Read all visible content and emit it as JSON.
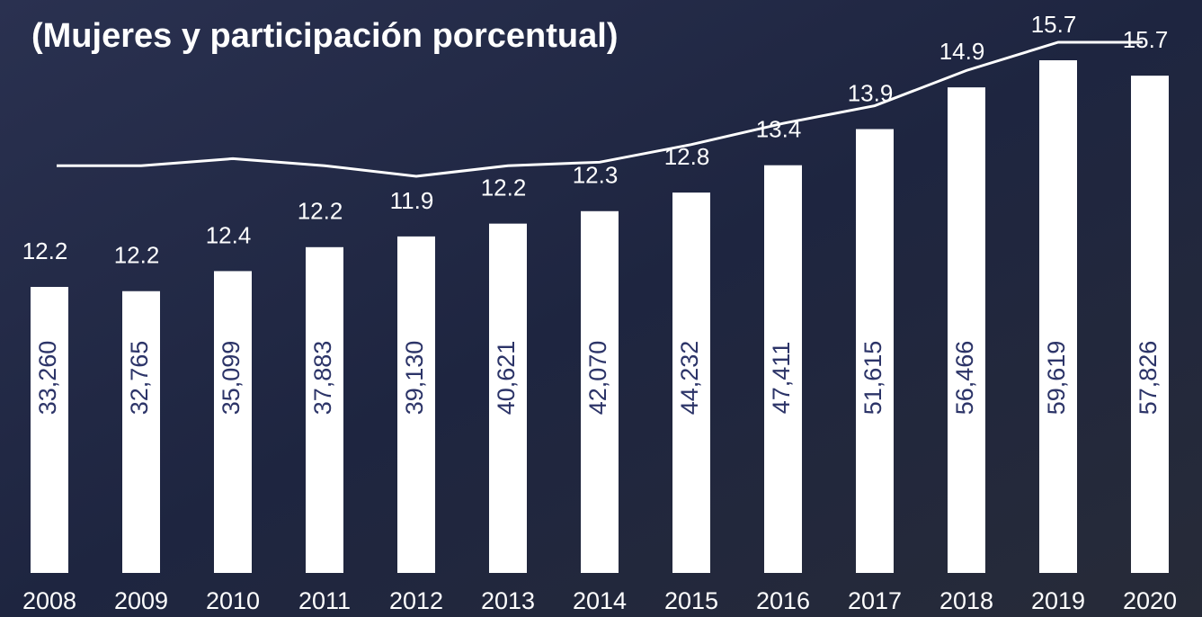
{
  "chart_data": {
    "type": "bar",
    "title": "(Mujeres y participación porcentual)",
    "categories": [
      "2008",
      "2009",
      "2010",
      "2011",
      "2012",
      "2013",
      "2014",
      "2015",
      "2016",
      "2017",
      "2018",
      "2019",
      "2020"
    ],
    "series": [
      {
        "type": "bar",
        "color": "#ffffff",
        "values": [
          33260,
          32765,
          35099,
          37883,
          39130,
          40621,
          42070,
          44232,
          47411,
          51615,
          56466,
          59619,
          57826
        ],
        "value_labels": [
          "33,260",
          "32,765",
          "35,099",
          "37,883",
          "39,130",
          "40,621",
          "42,070",
          "44,232",
          "47,411",
          "51,615",
          "56,466",
          "59,619",
          "57,826"
        ]
      },
      {
        "type": "line",
        "color": "#ffffff",
        "axis": "y2",
        "values": [
          12.2,
          12.2,
          12.4,
          12.2,
          11.9,
          12.2,
          12.3,
          12.8,
          13.4,
          13.9,
          14.9,
          15.7,
          15.7
        ]
      }
    ]
  }
}
